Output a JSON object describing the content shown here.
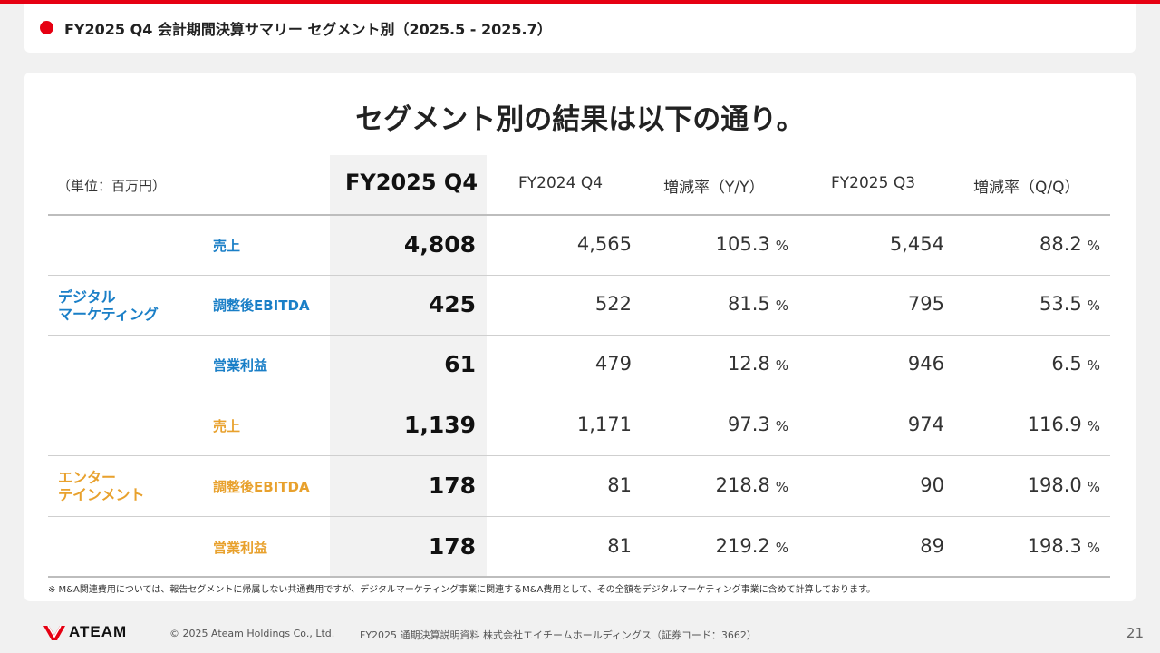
{
  "header": {
    "title": "FY2025 Q4 会計期間決算サマリー セグメント別（2025.5 - 2025.7）"
  },
  "headline": "セグメント別の結果は以下の通り。",
  "table": {
    "unit": "（単位：百万円）",
    "columns": [
      "FY2025 Q4",
      "FY2024 Q4",
      "増減率（Y/Y）",
      "FY2025 Q3",
      "増減率（Q/Q）"
    ],
    "pct_unit": "%",
    "segments": [
      {
        "name_line1": "デジタル",
        "name_line2": "マーケティング",
        "rows": [
          {
            "metric": "売上",
            "fy25q4": "4,808",
            "fy24q4": "4,565",
            "yoy": "105.3",
            "fy25q3": "5,454",
            "qoq": "88.2"
          },
          {
            "metric": "調整後EBITDA",
            "fy25q4": "425",
            "fy24q4": "522",
            "yoy": "81.5",
            "fy25q3": "795",
            "qoq": "53.5"
          },
          {
            "metric": "営業利益",
            "fy25q4": "61",
            "fy24q4": "479",
            "yoy": "12.8",
            "fy25q3": "946",
            "qoq": "6.5"
          }
        ]
      },
      {
        "name_line1": "エンター",
        "name_line2": "テインメント",
        "rows": [
          {
            "metric": "売上",
            "fy25q4": "1,139",
            "fy24q4": "1,171",
            "yoy": "97.3",
            "fy25q3": "974",
            "qoq": "116.9"
          },
          {
            "metric": "調整後EBITDA",
            "fy25q4": "178",
            "fy24q4": "81",
            "yoy": "218.8",
            "fy25q3": "90",
            "qoq": "198.0"
          },
          {
            "metric": "営業利益",
            "fy25q4": "178",
            "fy24q4": "81",
            "yoy": "219.2",
            "fy25q3": "89",
            "qoq": "198.3"
          }
        ]
      }
    ]
  },
  "footnote": "※ M&A関連費用については、報告セグメントに帰属しない共通費用ですが、デジタルマーケティング事業に関連するM&A費用として、その全額をデジタルマーケティング事業に含めて計算しております。",
  "footer": {
    "logo_text": "ATEAM",
    "copyright": "© 2025 Ateam Holdings Co., Ltd.",
    "document": "FY2025 通期決算説明資料 株式会社エイチームホールディングス（証券コード：3662）",
    "page": "21"
  },
  "colors": {
    "accent": "#e60012",
    "digital": "#1a7fc7",
    "entertainment": "#e8a12d"
  }
}
